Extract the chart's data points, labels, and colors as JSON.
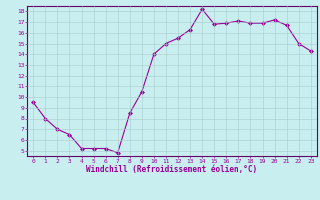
{
  "x": [
    0,
    1,
    2,
    3,
    4,
    5,
    6,
    7,
    8,
    9,
    10,
    11,
    12,
    13,
    14,
    15,
    16,
    17,
    18,
    19,
    20,
    21,
    22,
    23
  ],
  "y": [
    9.5,
    8.0,
    7.0,
    6.5,
    5.2,
    5.2,
    5.2,
    4.8,
    8.5,
    10.5,
    14.0,
    15.0,
    15.5,
    16.3,
    18.2,
    16.8,
    16.9,
    17.1,
    16.9,
    16.9,
    17.2,
    16.7,
    15.0,
    14.3
  ],
  "line_color": "#990099",
  "marker": "D",
  "markersize": 2.0,
  "linewidth": 0.8,
  "xlabel": "Windchill (Refroidissement éolien,°C)",
  "xlabel_fontsize": 5.5,
  "ylim": [
    4.5,
    18.5
  ],
  "xlim": [
    -0.5,
    23.5
  ],
  "yticks": [
    5,
    6,
    7,
    8,
    9,
    10,
    11,
    12,
    13,
    14,
    15,
    16,
    17,
    18
  ],
  "xticks": [
    0,
    1,
    2,
    3,
    4,
    5,
    6,
    7,
    8,
    9,
    10,
    11,
    12,
    13,
    14,
    15,
    16,
    17,
    18,
    19,
    20,
    21,
    22,
    23
  ],
  "bg_color": "#c8eef0",
  "grid_color": "#aacccc",
  "tick_color": "#990099",
  "tick_fontsize": 4.5,
  "spine_color": "#660066"
}
